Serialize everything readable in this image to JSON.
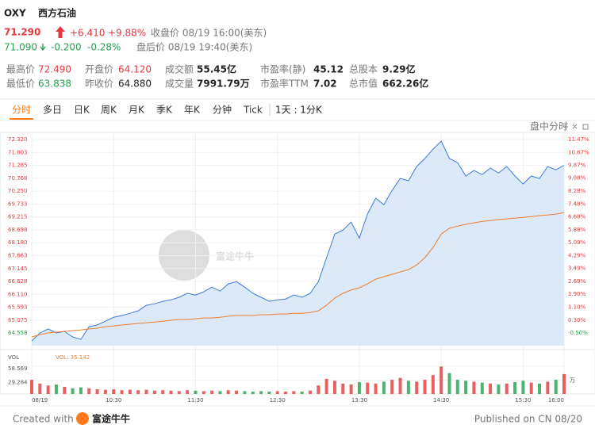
{
  "header": {
    "ticker": "OXY",
    "name": "西方石油",
    "price": "71.290",
    "change": "+6.410",
    "change_pct": "+9.88%",
    "close_note": "收盘价 08/19 16:00(美东)",
    "after_price": "71.090",
    "after_change": "-0.200",
    "after_change_pct": "-0.28%",
    "after_note": "盘后价 08/19 19:40(美东)"
  },
  "stats": [
    {
      "label": "最高价",
      "value": "72.490"
    },
    {
      "label": "开盘价",
      "value": "64.120"
    },
    {
      "label": "成交额",
      "value": "55.45亿"
    },
    {
      "label": "市盈率(静)",
      "value": "45.12"
    },
    {
      "label": "总股本",
      "value": "9.29亿"
    },
    {
      "label": "最低价",
      "value": "63.838"
    },
    {
      "label": "昨收价",
      "value": "64.880"
    },
    {
      "label": "成交量",
      "value": "7991.79万"
    },
    {
      "label": "市盈率TTM",
      "value": "7.02"
    },
    {
      "label": "总市值",
      "value": "662.26亿"
    }
  ],
  "tabs": [
    "分时",
    "多日",
    "日K",
    "周K",
    "月K",
    "季K",
    "年K",
    "分钟",
    "Tick"
  ],
  "interval": "1天 : 1分K",
  "chart_mode": "盘中分时",
  "watermark": "富途牛牛",
  "chart_data": [
    {
      "type": "line",
      "categories": [
        "09:30",
        "09:36",
        "09:42",
        "09:48",
        "09:54",
        "10:00",
        "10:06",
        "10:12",
        "10:18",
        "10:24",
        "10:30",
        "10:36",
        "10:42",
        "10:48",
        "10:54",
        "11:00",
        "11:06",
        "11:12",
        "11:18",
        "11:24",
        "11:30",
        "11:36",
        "11:42",
        "11:48",
        "11:54",
        "12:00",
        "12:06",
        "12:12",
        "12:18",
        "12:24",
        "12:30",
        "12:36",
        "12:42",
        "12:48",
        "12:54",
        "13:00",
        "13:06",
        "13:12",
        "13:18",
        "13:24",
        "13:30",
        "13:36",
        "13:42",
        "13:48",
        "13:54",
        "14:00",
        "14:06",
        "14:12",
        "14:18",
        "14:24",
        "14:30",
        "14:36",
        "14:42",
        "14:48",
        "14:54",
        "15:00",
        "15:06",
        "15:12",
        "15:18",
        "15:24",
        "15:30",
        "15:36",
        "15:42",
        "15:48",
        "15:54",
        "16:00"
      ],
      "series": [
        {
          "color": "#3b7bd8",
          "fill": "#d6e5f8",
          "values": [
            64.24,
            64.56,
            64.72,
            64.56,
            64.62,
            64.4,
            64.3,
            64.81,
            64.88,
            65.03,
            65.19,
            65.26,
            65.35,
            65.45,
            65.67,
            65.73,
            65.83,
            65.89,
            65.99,
            66.15,
            66.08,
            66.21,
            66.4,
            66.24,
            66.53,
            66.62,
            66.4,
            66.15,
            65.99,
            65.83,
            65.89,
            65.92,
            66.08,
            65.99,
            66.15,
            66.62,
            67.58,
            68.53,
            68.69,
            69.01,
            68.37,
            69.33,
            69.97,
            69.71,
            70.28,
            70.76,
            70.67,
            71.24,
            71.56,
            71.94,
            72.26,
            71.56,
            71.4,
            70.86,
            71.08,
            70.92,
            71.18,
            70.98,
            71.24,
            70.86,
            70.54,
            70.86,
            70.76,
            71.24,
            71.11,
            71.29
          ]
        },
        {
          "color": "#f07d2d",
          "values": [
            64.4,
            64.49,
            64.56,
            64.59,
            64.62,
            64.65,
            64.68,
            64.72,
            64.75,
            64.81,
            64.84,
            64.88,
            64.91,
            64.94,
            64.97,
            65.0,
            65.03,
            65.07,
            65.1,
            65.1,
            65.13,
            65.16,
            65.16,
            65.19,
            65.23,
            65.26,
            65.26,
            65.26,
            65.29,
            65.29,
            65.32,
            65.32,
            65.35,
            65.35,
            65.38,
            65.45,
            65.67,
            65.96,
            66.15,
            66.28,
            66.37,
            66.53,
            66.72,
            66.82,
            66.91,
            67.01,
            67.1,
            67.29,
            67.58,
            67.99,
            68.53,
            68.76,
            68.85,
            68.92,
            68.98,
            69.04,
            69.07,
            69.11,
            69.14,
            69.17,
            69.2,
            69.23,
            69.27,
            69.3,
            69.33,
            69.39
          ]
        }
      ],
      "ylim": [
        64.05,
        72.58
      ],
      "yticks": [
        {
          "value": 72.32,
          "label": "72.320"
        },
        71.803,
        71.285,
        70.768,
        {
          "value": 70.25,
          "label": "70.250"
        },
        69.733,
        69.215,
        68.698,
        {
          "value": 68.18,
          "label": "68.180"
        },
        67.663,
        67.145,
        66.628,
        {
          "value": 66.11,
          "label": "66.110"
        },
        65.593,
        65.075,
        64.558
      ],
      "y2lim": [
        -1.28,
        11.86
      ],
      "y2ticks": [
        {
          "value": 11.47,
          "label": "11.47%"
        },
        {
          "value": 10.67,
          "label": "10.67%"
        },
        {
          "value": 9.87,
          "label": "9.87%"
        },
        {
          "value": 9.08,
          "label": "9.08%"
        },
        {
          "value": 8.28,
          "label": "8.28%"
        },
        {
          "value": 7.48,
          "label": "7.48%"
        },
        {
          "value": 6.68,
          "label": "6.68%"
        },
        {
          "value": 5.88,
          "label": "5.88%"
        },
        {
          "value": 5.09,
          "label": "5.09%"
        },
        {
          "value": 4.29,
          "label": "4.29%"
        },
        {
          "value": 3.49,
          "label": "3.49%"
        },
        {
          "value": 2.69,
          "label": "2.69%"
        },
        {
          "value": 1.9,
          "label": "1.90%"
        },
        {
          "value": 1.1,
          "label": "1.10%"
        },
        {
          "value": 0.3,
          "label": "0.30%"
        },
        {
          "value": -0.5,
          "label": "-0.50%"
        }
      ],
      "xticks": [
        {
          "value": "09:30",
          "label": "08/19"
        },
        {
          "value": "10:30",
          "label": "10:30"
        },
        {
          "value": "11:30",
          "label": "11:30"
        },
        {
          "value": "12:30",
          "label": "12:30"
        },
        {
          "value": "13:30",
          "label": "13:30"
        },
        {
          "value": "14:30",
          "label": "14:30"
        },
        {
          "value": "15:30",
          "label": "15:30"
        },
        {
          "value": "16:00",
          "label": "16:00"
        }
      ],
      "grid": true,
      "up_color": "#e5383b",
      "down_color": "#22a04b"
    },
    {
      "type": "bar",
      "label": "VOL",
      "value_text": "VOL: 35.142",
      "values": [
        30,
        22,
        18,
        20,
        15,
        12,
        14,
        12,
        10,
        9,
        10,
        8,
        9,
        8,
        9,
        7,
        8,
        7,
        6,
        8,
        7,
        6,
        7,
        6,
        8,
        7,
        6,
        5,
        6,
        5,
        6,
        5,
        6,
        5,
        7,
        18,
        32,
        28,
        22,
        20,
        25,
        24,
        22,
        26,
        30,
        34,
        28,
        26,
        30,
        40,
        58,
        44,
        30,
        28,
        26,
        24,
        22,
        20,
        22,
        25,
        28,
        24,
        22,
        26,
        30,
        42
      ],
      "ylim": [
        0,
        58.569
      ],
      "yticks": [
        58.569,
        29.284
      ],
      "unit_label": "万",
      "up_color": "#e5383b",
      "down_color": "#22a04b"
    }
  ],
  "footer": {
    "created": "Created with",
    "brand": "富途牛牛",
    "published": "Published on CN 08/20"
  }
}
